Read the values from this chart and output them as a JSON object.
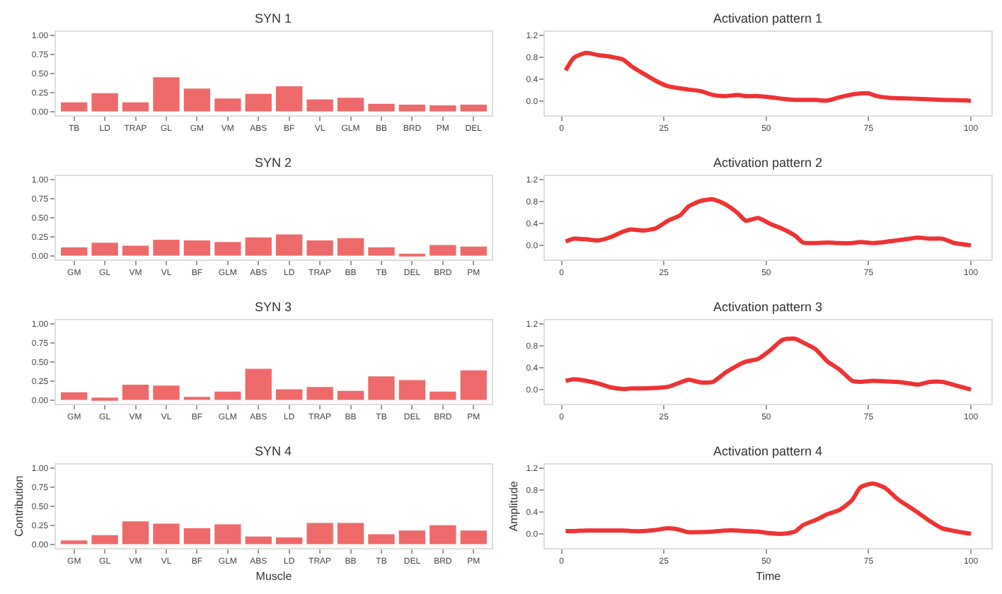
{
  "chart_data": [
    {
      "type": "bar",
      "title": "SYN 1",
      "categories": [
        "TB",
        "LD",
        "TRAP",
        "GL",
        "GM",
        "VM",
        "ABS",
        "BF",
        "VL",
        "GLM",
        "BB",
        "BRD",
        "PM",
        "DEL"
      ],
      "values": [
        0.12,
        0.24,
        0.12,
        0.45,
        0.3,
        0.17,
        0.23,
        0.33,
        0.16,
        0.18,
        0.1,
        0.09,
        0.08,
        0.09
      ],
      "color": "#ee6a6a",
      "ylim": [
        -0.05,
        1.05
      ],
      "yticks": [
        {
          "value": 0,
          "label": "0.00"
        },
        {
          "value": 0.25,
          "label": "0.25"
        },
        {
          "value": 0.5,
          "label": "0.50"
        },
        {
          "value": 0.75,
          "label": "0.75"
        },
        {
          "value": 1,
          "label": "1.00"
        }
      ]
    },
    {
      "type": "line",
      "title": "Activation pattern 1",
      "x": [
        1,
        3,
        6,
        9,
        12,
        15,
        17,
        20,
        23,
        26,
        29,
        31,
        34,
        37,
        40,
        43,
        45,
        48,
        51,
        54,
        57,
        59,
        62,
        65,
        68,
        72,
        75,
        77,
        80,
        83,
        87,
        93,
        99,
        100
      ],
      "values": [
        0.56,
        0.79,
        0.88,
        0.84,
        0.81,
        0.76,
        0.64,
        0.5,
        0.37,
        0.27,
        0.23,
        0.21,
        0.18,
        0.11,
        0.09,
        0.11,
        0.09,
        0.09,
        0.07,
        0.04,
        0.02,
        0.02,
        0.02,
        0.01,
        0.07,
        0.13,
        0.14,
        0.09,
        0.06,
        0.05,
        0.04,
        0.02,
        0.01,
        0.0
      ],
      "color": "#ee3333",
      "xlim": [
        -4,
        105
      ],
      "xticks": [
        0,
        25,
        50,
        75,
        100
      ],
      "ylim": [
        -0.26,
        1.27
      ],
      "yticks": [
        {
          "value": 0,
          "label": "0.0"
        },
        0.4,
        0.8,
        1.2
      ]
    },
    {
      "type": "bar",
      "title": "SYN 2",
      "categories": [
        "GM",
        "GL",
        "VM",
        "VL",
        "BF",
        "GLM",
        "ABS",
        "LD",
        "TRAP",
        "BB",
        "TB",
        "DEL",
        "BRD",
        "PM"
      ],
      "values": [
        0.11,
        0.17,
        0.13,
        0.21,
        0.2,
        0.18,
        0.24,
        0.28,
        0.2,
        0.23,
        0.11,
        0.02,
        0.14,
        0.12
      ],
      "color": "#ee6a6a",
      "ylim": [
        -0.05,
        1.05
      ],
      "yticks": [
        {
          "value": 0,
          "label": "0.00"
        },
        {
          "value": 0.25,
          "label": "0.25"
        },
        {
          "value": 0.5,
          "label": "0.50"
        },
        {
          "value": 0.75,
          "label": "0.75"
        },
        {
          "value": 1,
          "label": "1.00"
        }
      ]
    },
    {
      "type": "line",
      "title": "Activation pattern 2",
      "x": [
        1,
        3,
        6,
        9,
        12,
        15,
        17,
        20,
        23,
        26,
        29,
        31,
        34,
        37,
        40,
        43,
        45,
        48,
        51,
        54,
        57,
        59,
        62,
        65,
        68,
        71,
        73,
        76,
        79,
        82,
        85,
        87,
        90,
        93,
        96,
        100
      ],
      "values": [
        0.07,
        0.12,
        0.11,
        0.09,
        0.15,
        0.25,
        0.29,
        0.27,
        0.31,
        0.45,
        0.55,
        0.71,
        0.81,
        0.84,
        0.75,
        0.59,
        0.45,
        0.5,
        0.39,
        0.3,
        0.18,
        0.05,
        0.04,
        0.05,
        0.04,
        0.04,
        0.06,
        0.04,
        0.06,
        0.09,
        0.12,
        0.14,
        0.12,
        0.12,
        0.04,
        0.0
      ],
      "color": "#ee3333",
      "xlim": [
        -4,
        105
      ],
      "xticks": [
        0,
        25,
        50,
        75,
        100
      ],
      "ylim": [
        -0.26,
        1.27
      ],
      "yticks": [
        {
          "value": 0,
          "label": "0.0"
        },
        0.4,
        0.8,
        1.2
      ]
    },
    {
      "type": "bar",
      "title": "SYN 3",
      "categories": [
        "GM",
        "GL",
        "VM",
        "VL",
        "BF",
        "GLM",
        "ABS",
        "LD",
        "TRAP",
        "BB",
        "TB",
        "DEL",
        "BRD",
        "PM"
      ],
      "values": [
        0.1,
        0.03,
        0.2,
        0.19,
        0.04,
        0.11,
        0.41,
        0.14,
        0.17,
        0.12,
        0.31,
        0.26,
        0.11,
        0.39
      ],
      "color": "#ee6a6a",
      "ylim": [
        -0.05,
        1.05
      ],
      "yticks": [
        {
          "value": 0,
          "label": "0.00"
        },
        {
          "value": 0.25,
          "label": "0.25"
        },
        {
          "value": 0.5,
          "label": "0.50"
        },
        {
          "value": 0.75,
          "label": "0.75"
        },
        {
          "value": 1,
          "label": "1.00"
        }
      ]
    },
    {
      "type": "line",
      "title": "Activation pattern 3",
      "x": [
        1,
        3,
        6,
        9,
        12,
        15,
        17,
        20,
        23,
        26,
        29,
        31,
        34,
        37,
        40,
        43,
        45,
        48,
        51,
        54,
        57,
        59,
        62,
        65,
        68,
        71,
        73,
        76,
        79,
        82,
        85,
        87,
        90,
        93,
        96,
        100
      ],
      "values": [
        0.16,
        0.19,
        0.16,
        0.11,
        0.04,
        0.01,
        0.02,
        0.02,
        0.03,
        0.05,
        0.13,
        0.18,
        0.13,
        0.14,
        0.31,
        0.44,
        0.51,
        0.56,
        0.72,
        0.91,
        0.93,
        0.86,
        0.74,
        0.51,
        0.36,
        0.16,
        0.14,
        0.16,
        0.15,
        0.14,
        0.11,
        0.09,
        0.14,
        0.14,
        0.08,
        0.0
      ],
      "color": "#ee3333",
      "xlim": [
        -4,
        105
      ],
      "xticks": [
        0,
        25,
        50,
        75,
        100
      ],
      "ylim": [
        -0.26,
        1.27
      ],
      "yticks": [
        {
          "value": 0,
          "label": "0.0"
        },
        0.4,
        0.8,
        1.2
      ]
    },
    {
      "type": "bar",
      "title": "SYN 4",
      "xlabel": "Muscle",
      "ylabel": "Contribution",
      "categories": [
        "GM",
        "GL",
        "VM",
        "VL",
        "BF",
        "GLM",
        "ABS",
        "LD",
        "TRAP",
        "BB",
        "TB",
        "DEL",
        "BRD",
        "PM"
      ],
      "values": [
        0.05,
        0.12,
        0.3,
        0.27,
        0.21,
        0.26,
        0.1,
        0.09,
        0.28,
        0.28,
        0.13,
        0.18,
        0.25,
        0.18
      ],
      "color": "#ee6a6a",
      "ylim": [
        -0.05,
        1.05
      ],
      "yticks": [
        {
          "value": 0,
          "label": "0.00"
        },
        {
          "value": 0.25,
          "label": "0.25"
        },
        {
          "value": 0.5,
          "label": "0.50"
        },
        {
          "value": 0.75,
          "label": "0.75"
        },
        {
          "value": 1,
          "label": "1.00"
        }
      ]
    },
    {
      "type": "line",
      "title": "Activation pattern 4",
      "xlabel": "Time",
      "ylabel": "Amplitude",
      "x": [
        1,
        3,
        6,
        9,
        12,
        15,
        17,
        20,
        23,
        26,
        29,
        31,
        34,
        37,
        40,
        43,
        45,
        48,
        51,
        54,
        57,
        59,
        62,
        65,
        68,
        71,
        73,
        76,
        79,
        82,
        85,
        87,
        90,
        93,
        96,
        100
      ],
      "values": [
        0.05,
        0.05,
        0.06,
        0.06,
        0.06,
        0.06,
        0.05,
        0.05,
        0.07,
        0.1,
        0.07,
        0.03,
        0.03,
        0.04,
        0.06,
        0.06,
        0.05,
        0.04,
        0.01,
        0.0,
        0.04,
        0.16,
        0.25,
        0.36,
        0.44,
        0.62,
        0.85,
        0.92,
        0.84,
        0.64,
        0.49,
        0.39,
        0.23,
        0.1,
        0.05,
        0.0
      ],
      "color": "#ee3333",
      "xlim": [
        -4,
        105
      ],
      "xticks": [
        0,
        25,
        50,
        75,
        100
      ],
      "ylim": [
        -0.26,
        1.27
      ],
      "yticks": [
        {
          "value": 0,
          "label": "0.0"
        },
        0.4,
        0.8,
        1.2
      ]
    }
  ]
}
